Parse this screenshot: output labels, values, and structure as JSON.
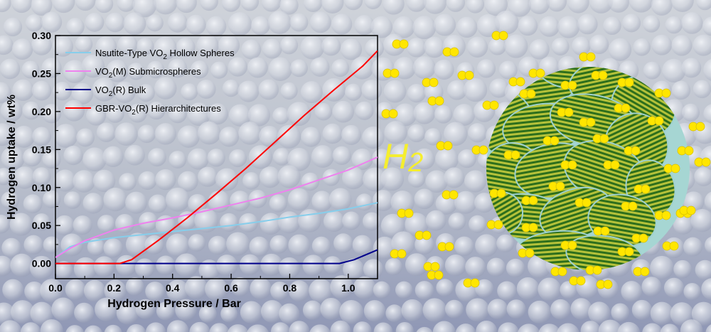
{
  "chart_data": {
    "type": "line",
    "xlabel": "Hydrogen Pressure / Bar",
    "ylabel": "Hydrogen uptake / wt%",
    "xlim": [
      0.0,
      1.1
    ],
    "ylim": [
      -0.02,
      0.3
    ],
    "x_ticks": [
      0.0,
      0.2,
      0.4,
      0.6,
      0.8,
      1.0
    ],
    "x_tick_labels": [
      "0.0",
      "0.2",
      "0.4",
      "0.6",
      "0.8",
      "1.0"
    ],
    "y_ticks": [
      0.0,
      0.05,
      0.1,
      0.15,
      0.2,
      0.25,
      0.3
    ],
    "y_tick_labels": [
      "0.00",
      "0.05",
      "0.10",
      "0.15",
      "0.20",
      "0.25",
      "0.30"
    ],
    "grid": false,
    "legend_position": "top-left",
    "series": [
      {
        "name_main": "Nsutite-Type VO",
        "name_sub": "2",
        "name_tail": " Hollow Spheres",
        "color": "#87ceeb",
        "points": [
          [
            0.0,
            0.008
          ],
          [
            0.05,
            0.022
          ],
          [
            0.1,
            0.028
          ],
          [
            0.2,
            0.034
          ],
          [
            0.3,
            0.038
          ],
          [
            0.4,
            0.042
          ],
          [
            0.5,
            0.046
          ],
          [
            0.6,
            0.05
          ],
          [
            0.7,
            0.055
          ],
          [
            0.8,
            0.061
          ],
          [
            0.9,
            0.066
          ],
          [
            1.0,
            0.072
          ],
          [
            1.1,
            0.08
          ]
        ]
      },
      {
        "name_main": "VO",
        "name_sub": "2",
        "name_tail": "(M) Submicrospheres",
        "color": "#ee82ee",
        "points": [
          [
            0.0,
            0.008
          ],
          [
            0.05,
            0.02
          ],
          [
            0.1,
            0.03
          ],
          [
            0.2,
            0.044
          ],
          [
            0.3,
            0.053
          ],
          [
            0.4,
            0.06
          ],
          [
            0.5,
            0.068
          ],
          [
            0.6,
            0.077
          ],
          [
            0.7,
            0.086
          ],
          [
            0.8,
            0.097
          ],
          [
            0.9,
            0.11
          ],
          [
            1.0,
            0.123
          ],
          [
            1.1,
            0.14
          ]
        ]
      },
      {
        "name_main": "VO",
        "name_sub": "2",
        "name_tail": "(R) Bulk",
        "color": "#00008b",
        "points": [
          [
            0.0,
            0.0
          ],
          [
            0.97,
            0.0
          ],
          [
            1.02,
            0.005
          ],
          [
            1.1,
            0.018
          ]
        ]
      },
      {
        "name_main": "GBR-VO",
        "name_sub": "2",
        "name_tail": "(R) Hierarchitectures",
        "color": "#ff0000",
        "points": [
          [
            0.0,
            0.0
          ],
          [
            0.22,
            0.0
          ],
          [
            0.26,
            0.005
          ],
          [
            0.35,
            0.03
          ],
          [
            0.45,
            0.06
          ],
          [
            0.55,
            0.092
          ],
          [
            0.65,
            0.125
          ],
          [
            0.75,
            0.16
          ],
          [
            0.85,
            0.195
          ],
          [
            0.95,
            0.228
          ],
          [
            1.05,
            0.26
          ],
          [
            1.1,
            0.28
          ]
        ]
      }
    ]
  },
  "h2_label_main": "H",
  "h2_label_sub": "2",
  "colors": {
    "molecule": "#ffe600",
    "background_light": "#c9ced6",
    "background_dark": "#8f97b5",
    "sphere_base": "#9fd1cf",
    "stripe_dark": "#2d6e1c",
    "stripe_light": "#b5c23a"
  }
}
